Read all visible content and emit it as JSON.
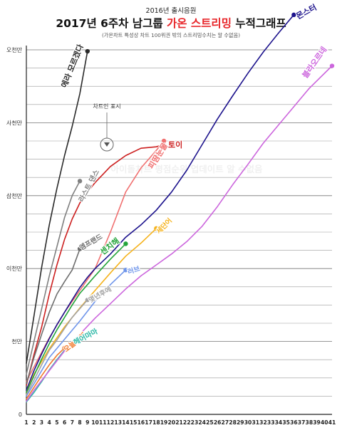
{
  "header": {
    "pretitle": "2016년 출시음원",
    "title_part1": "2017년 6주차 남그룹 ",
    "title_highlight": "가온 스트리밍",
    "title_part2": " 누적그래프",
    "subtitle": "(가온차트 특성상 차트 100위권 밖의 스트리밍수치는 알 수없음)"
  },
  "watermark": "아이돌차트 평점순위 업데이트 알 수없음",
  "annotation": "차트인 표시",
  "colors": {
    "title_highlight": "#e8262a",
    "grid": "#666666",
    "axis": "#222222"
  },
  "chart_data": {
    "type": "line",
    "title": "2017년 6주차 남그룹 가온 스트리밍 누적그래프",
    "xlabel": "",
    "ylabel": "",
    "x": [
      1,
      2,
      3,
      4,
      5,
      6,
      7,
      8,
      9,
      10,
      11,
      12,
      13,
      14,
      15,
      16,
      17,
      18,
      19,
      20,
      21,
      22,
      23,
      24,
      25,
      26,
      27,
      28,
      29,
      30,
      31,
      32,
      33,
      34,
      35,
      36,
      37,
      38,
      39,
      40,
      41
    ],
    "x_tick_labels": [
      "1",
      "2",
      "3",
      "4",
      "5",
      "6",
      "7",
      "8",
      "9",
      "10",
      "11",
      "12",
      "13",
      "14",
      "15",
      "16",
      "17",
      "18",
      "19",
      "20",
      "21",
      "22",
      "23",
      "24",
      "25",
      "26",
      "27",
      "28",
      "29",
      "30",
      "31",
      "32",
      "33",
      "34",
      "35",
      "36",
      "37",
      "38",
      "39",
      "40",
      "41"
    ],
    "xlim": [
      1,
      41
    ],
    "ylim": [
      0,
      50000000
    ],
    "y_ticks": [
      0,
      10000000,
      20000000,
      30000000,
      40000000,
      50000000
    ],
    "y_tick_labels": [
      "0",
      "천만",
      "이천만",
      "삼천만",
      "사천만",
      "오천만"
    ],
    "grid": true,
    "series": [
      {
        "name": "에라 모르겠다",
        "color": "#2a2a2a",
        "x": [
          1,
          2,
          3,
          4,
          5,
          6,
          7,
          8,
          9
        ],
        "values": [
          7000000,
          13500000,
          20200000,
          26000000,
          31000000,
          35500000,
          39500000,
          44000000,
          49800000
        ]
      },
      {
        "name": "라스트 댄스",
        "color": "#808080",
        "x": [
          1,
          2,
          3,
          4,
          5,
          6,
          7,
          8
        ],
        "values": [
          5500000,
          10000000,
          14500000,
          19000000,
          23000000,
          27000000,
          30000000,
          32000000
        ]
      },
      {
        "name": "피땀눈물",
        "color": "#f07070",
        "x": [
          1,
          2,
          4,
          6,
          8,
          10,
          12,
          14,
          16,
          17,
          18,
          19
        ],
        "values": [
          4500000,
          6500000,
          10500000,
          14000000,
          17000000,
          20000000,
          25000000,
          30500000,
          33800000,
          35000000,
          36200000,
          37500000
        ]
      },
      {
        "name": "토이",
        "color": "#cc1f1f",
        "x": [
          1,
          2,
          3,
          4,
          5,
          6,
          7,
          8,
          9,
          10,
          12,
          14,
          16,
          18,
          19
        ],
        "values": [
          4000000,
          8200000,
          12000000,
          16500000,
          20500000,
          24000000,
          26800000,
          29000000,
          30500000,
          31800000,
          34000000,
          35500000,
          36500000,
          36700000,
          37000000
        ]
      },
      {
        "name": "엠프랜드",
        "color": "#6e6e6e",
        "x": [
          1,
          2,
          3,
          4,
          5,
          6,
          7,
          8
        ],
        "values": [
          4200000,
          7800000,
          11000000,
          14000000,
          16500000,
          18200000,
          19800000,
          22700000
        ]
      },
      {
        "name": "몬스터",
        "color": "#1c128c",
        "x": [
          1,
          2,
          3,
          4,
          5,
          6,
          7,
          8,
          9,
          10,
          12,
          14,
          16,
          18,
          20,
          22,
          24,
          26,
          28,
          30,
          32,
          34,
          36
        ],
        "values": [
          3300000,
          6000000,
          8300000,
          10400000,
          12300000,
          14000000,
          15700000,
          17400000,
          18800000,
          20000000,
          22000000,
          24300000,
          26000000,
          28000000,
          30500000,
          33500000,
          37000000,
          40500000,
          43700000,
          46800000,
          49700000,
          52300000,
          54800000
        ]
      },
      {
        "name": "세단어",
        "color": "#f5b21b",
        "x": [
          1,
          2,
          4,
          6,
          8,
          10,
          12,
          14,
          16,
          18
        ],
        "values": [
          3000000,
          5500000,
          9000000,
          12000000,
          14600000,
          17000000,
          19400000,
          21700000,
          23500000,
          25500000
        ]
      },
      {
        "name": "센치해",
        "color": "#23a43a",
        "x": [
          1,
          2,
          3,
          4,
          5,
          6,
          7,
          8,
          10,
          12,
          14
        ],
        "values": [
          3000000,
          5300000,
          7600000,
          9700000,
          11600000,
          13300000,
          15000000,
          16600000,
          19000000,
          21300000,
          23400000
        ]
      },
      {
        "name": "러브",
        "color": "#6f95ea",
        "x": [
          1,
          2,
          4,
          6,
          8,
          10,
          12,
          14
        ],
        "values": [
          2500000,
          4200000,
          7800000,
          10300000,
          12800000,
          15500000,
          17800000,
          19800000
        ]
      },
      {
        "name": "몇년후에",
        "color": "#a3a3a3",
        "x": [
          1,
          2,
          3,
          4,
          5,
          6,
          7,
          8,
          9
        ],
        "values": [
          2700000,
          4700000,
          6800000,
          8800000,
          10200000,
          11800000,
          13300000,
          14500000,
          15700000
        ]
      },
      {
        "name": "오늘또해",
        "color": "#f0782a",
        "x": [
          1,
          2,
          3,
          4,
          5,
          6
        ],
        "values": [
          2100000,
          3700000,
          5300000,
          6800000,
          8100000,
          9100000
        ]
      },
      {
        "name": "헤어마마",
        "color": "#2db8a7",
        "x": [
          1,
          2,
          3,
          4,
          5,
          6,
          7
        ],
        "values": [
          1700000,
          3000000,
          4500000,
          6100000,
          7500000,
          8800000,
          9700000
        ]
      },
      {
        "name": "블라오르네",
        "color": "#cc66dd",
        "x": [
          1,
          2,
          4,
          6,
          8,
          10,
          12,
          14,
          16,
          18,
          20,
          22,
          24,
          26,
          28,
          30,
          32,
          34,
          36,
          38,
          41
        ],
        "values": [
          1800000,
          3300000,
          6000000,
          8700000,
          11000000,
          13200000,
          15200000,
          17200000,
          19000000,
          20500000,
          22000000,
          23700000,
          25800000,
          28500000,
          31500000,
          34300000,
          37200000,
          39700000,
          42200000,
          44700000,
          47800000
        ]
      }
    ]
  }
}
